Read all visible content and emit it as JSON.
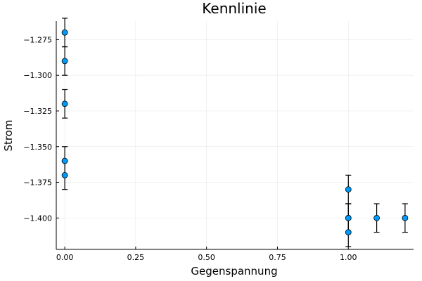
{
  "chart_data": {
    "type": "scatter",
    "title": "Kennlinie",
    "xlabel": "Gegenspannung",
    "ylabel": "Strom",
    "xlim": [
      -0.03,
      1.23
    ],
    "ylim": [
      -1.422,
      -1.262
    ],
    "grid": true,
    "legend": "none",
    "x_ticks": [
      0.0,
      0.25,
      0.5,
      0.75,
      1.0
    ],
    "x_tick_labels": [
      "0.00",
      "0.25",
      "0.50",
      "0.75",
      "1.00"
    ],
    "y_ticks": [
      -1.275,
      -1.3,
      -1.325,
      -1.35,
      -1.375,
      -1.4
    ],
    "y_tick_labels": [
      "−1.275",
      "−1.300",
      "−1.325",
      "−1.350",
      "−1.375",
      "−1.400"
    ],
    "series": [
      {
        "color": "#009af9",
        "error_color": "#000000",
        "points": [
          {
            "x": 0.0,
            "y": -1.27,
            "err": 0.01
          },
          {
            "x": 0.0,
            "y": -1.29,
            "err": 0.01
          },
          {
            "x": 0.0,
            "y": -1.32,
            "err": 0.01
          },
          {
            "x": 0.0,
            "y": -1.36,
            "err": 0.01
          },
          {
            "x": 0.0,
            "y": -1.37,
            "err": 0.01
          },
          {
            "x": 1.0,
            "y": -1.38,
            "err": 0.01
          },
          {
            "x": 1.0,
            "y": -1.4,
            "err": 0.01
          },
          {
            "x": 1.0,
            "y": -1.4,
            "err": 0.01
          },
          {
            "x": 1.0,
            "y": -1.41,
            "err": 0.01
          },
          {
            "x": 1.1,
            "y": -1.4,
            "err": 0.01
          },
          {
            "x": 1.2,
            "y": -1.4,
            "err": 0.01
          }
        ]
      }
    ]
  }
}
